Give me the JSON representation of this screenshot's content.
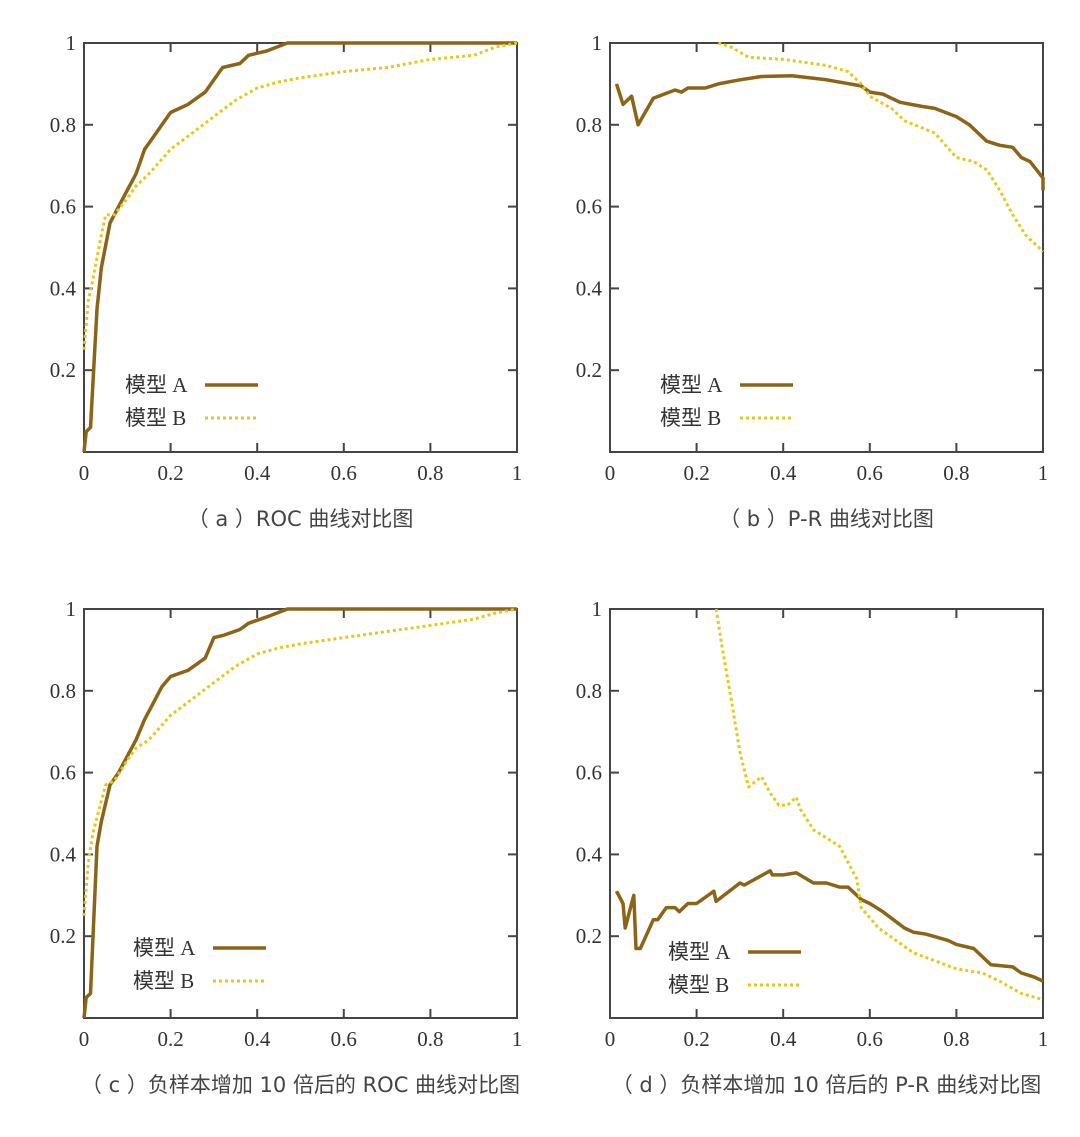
{
  "colors": {
    "model_a": "#8c6418",
    "model_b": "#e6c81a",
    "axis": "#444444"
  },
  "chart_data": [
    {
      "type": "line",
      "caption": "（ a ）ROC 曲线对比图",
      "xlim": [
        0,
        1
      ],
      "ylim": [
        0,
        1
      ],
      "x_ticks": [
        "0",
        "0.2",
        "0.4",
        "0.6",
        "0.8",
        "1"
      ],
      "y_ticks": [
        "0.2",
        "0.4",
        "0.6",
        "0.8",
        "1"
      ],
      "grid": false,
      "legend_position": "bottom-left",
      "series": [
        {
          "name": "模型 A",
          "style": "solid",
          "x": [
            0,
            0.005,
            0.015,
            0.03,
            0.04,
            0.06,
            0.08,
            0.1,
            0.12,
            0.14,
            0.16,
            0.18,
            0.2,
            0.24,
            0.28,
            0.3,
            0.32,
            0.36,
            0.38,
            0.42,
            0.47,
            0.55,
            1
          ],
          "y": [
            0,
            0.05,
            0.06,
            0.35,
            0.45,
            0.56,
            0.6,
            0.64,
            0.68,
            0.74,
            0.77,
            0.8,
            0.83,
            0.85,
            0.88,
            0.91,
            0.94,
            0.95,
            0.97,
            0.98,
            1,
            1,
            1
          ]
        },
        {
          "name": "模型 B",
          "style": "dotted",
          "x": [
            0,
            0.01,
            0.02,
            0.04,
            0.05,
            0.07,
            0.1,
            0.12,
            0.15,
            0.2,
            0.25,
            0.3,
            0.35,
            0.4,
            0.45,
            0.5,
            0.6,
            0.7,
            0.8,
            0.9,
            0.95,
            1
          ],
          "y": [
            0.25,
            0.37,
            0.42,
            0.53,
            0.58,
            0.58,
            0.62,
            0.65,
            0.68,
            0.74,
            0.78,
            0.82,
            0.86,
            0.89,
            0.905,
            0.915,
            0.93,
            0.94,
            0.96,
            0.97,
            0.99,
            1
          ]
        }
      ]
    },
    {
      "type": "line",
      "caption": "（ b ）P-R 曲线对比图",
      "xlim": [
        0,
        1
      ],
      "ylim": [
        0,
        1
      ],
      "x_ticks": [
        "0",
        "0.2",
        "0.4",
        "0.6",
        "0.8",
        "1"
      ],
      "y_ticks": [
        "0.2",
        "0.4",
        "0.6",
        "0.8",
        "1"
      ],
      "grid": false,
      "legend_position": "bottom-left",
      "series": [
        {
          "name": "模型 A",
          "style": "solid",
          "x": [
            0.015,
            0.03,
            0.05,
            0.065,
            0.1,
            0.15,
            0.165,
            0.18,
            0.22,
            0.25,
            0.3,
            0.35,
            0.42,
            0.5,
            0.58,
            0.6,
            0.63,
            0.67,
            0.72,
            0.75,
            0.8,
            0.83,
            0.87,
            0.9,
            0.93,
            0.95,
            0.97,
            1,
            1
          ],
          "y": [
            0.9,
            0.85,
            0.87,
            0.8,
            0.865,
            0.885,
            0.88,
            0.89,
            0.89,
            0.9,
            0.91,
            0.918,
            0.92,
            0.91,
            0.895,
            0.88,
            0.875,
            0.855,
            0.845,
            0.84,
            0.82,
            0.8,
            0.76,
            0.75,
            0.745,
            0.72,
            0.71,
            0.67,
            0.64
          ]
        },
        {
          "name": "模型 B",
          "style": "dotted",
          "x": [
            0.25,
            0.28,
            0.32,
            0.4,
            0.5,
            0.55,
            0.58,
            0.6,
            0.65,
            0.68,
            0.75,
            0.8,
            0.84,
            0.87,
            0.9,
            0.93,
            0.96,
            1
          ],
          "y": [
            1,
            0.99,
            0.965,
            0.96,
            0.945,
            0.93,
            0.9,
            0.87,
            0.84,
            0.81,
            0.78,
            0.72,
            0.71,
            0.69,
            0.64,
            0.58,
            0.53,
            0.49
          ]
        }
      ]
    },
    {
      "type": "line",
      "caption": "（ c ）负样本增加 10 倍后的 ROC 曲线对比图",
      "xlim": [
        0,
        1
      ],
      "ylim": [
        0,
        1
      ],
      "x_ticks": [
        "0",
        "0.2",
        "0.4",
        "0.6",
        "0.8",
        "1"
      ],
      "y_ticks": [
        "0.2",
        "0.4",
        "0.6",
        "0.8",
        "1"
      ],
      "grid": false,
      "legend_position": "bottom-left",
      "series": [
        {
          "name": "模型 A",
          "style": "solid",
          "x": [
            0,
            0.005,
            0.015,
            0.03,
            0.04,
            0.06,
            0.08,
            0.1,
            0.12,
            0.14,
            0.16,
            0.18,
            0.2,
            0.24,
            0.28,
            0.3,
            0.32,
            0.36,
            0.38,
            0.42,
            0.47,
            0.55,
            1
          ],
          "y": [
            0,
            0.05,
            0.06,
            0.42,
            0.48,
            0.57,
            0.6,
            0.64,
            0.68,
            0.73,
            0.77,
            0.81,
            0.835,
            0.85,
            0.88,
            0.93,
            0.935,
            0.95,
            0.965,
            0.98,
            1,
            1,
            1
          ]
        },
        {
          "name": "模型 B",
          "style": "dotted",
          "x": [
            0,
            0.01,
            0.02,
            0.04,
            0.05,
            0.07,
            0.1,
            0.12,
            0.15,
            0.2,
            0.25,
            0.3,
            0.35,
            0.4,
            0.45,
            0.5,
            0.6,
            0.7,
            0.8,
            0.9,
            0.95,
            1
          ],
          "y": [
            0.25,
            0.38,
            0.45,
            0.53,
            0.57,
            0.58,
            0.63,
            0.66,
            0.68,
            0.74,
            0.78,
            0.82,
            0.86,
            0.89,
            0.905,
            0.915,
            0.93,
            0.945,
            0.96,
            0.975,
            0.99,
            1
          ]
        }
      ]
    },
    {
      "type": "line",
      "caption": "（ d ）负样本增加 10 倍后的 P-R 曲线对比图",
      "xlim": [
        0,
        1
      ],
      "ylim": [
        0,
        1
      ],
      "x_ticks": [
        "0",
        "0.2",
        "0.4",
        "0.6",
        "0.8",
        "1"
      ],
      "y_ticks": [
        "0.2",
        "0.4",
        "0.6",
        "0.8",
        "1"
      ],
      "grid": false,
      "legend_position": "bottom-left",
      "series": [
        {
          "name": "模型 A",
          "style": "solid",
          "x": [
            0.015,
            0.03,
            0.035,
            0.05,
            0.055,
            0.06,
            0.07,
            0.1,
            0.11,
            0.13,
            0.15,
            0.16,
            0.18,
            0.2,
            0.24,
            0.245,
            0.3,
            0.31,
            0.37,
            0.375,
            0.4,
            0.43,
            0.47,
            0.5,
            0.53,
            0.55,
            0.58,
            0.6,
            0.63,
            0.68,
            0.7,
            0.73,
            0.78,
            0.8,
            0.84,
            0.88,
            0.93,
            0.95,
            0.98,
            1
          ],
          "y": [
            0.31,
            0.28,
            0.22,
            0.28,
            0.3,
            0.17,
            0.17,
            0.24,
            0.24,
            0.27,
            0.27,
            0.26,
            0.28,
            0.28,
            0.31,
            0.285,
            0.33,
            0.325,
            0.36,
            0.35,
            0.35,
            0.355,
            0.33,
            0.33,
            0.32,
            0.32,
            0.29,
            0.28,
            0.26,
            0.22,
            0.21,
            0.205,
            0.19,
            0.18,
            0.17,
            0.13,
            0.125,
            0.11,
            0.1,
            0.09
          ]
        },
        {
          "name": "模型 B",
          "style": "dotted",
          "x": [
            0.245,
            0.26,
            0.28,
            0.3,
            0.32,
            0.35,
            0.37,
            0.39,
            0.41,
            0.43,
            0.44,
            0.47,
            0.5,
            0.53,
            0.57,
            0.58,
            0.62,
            0.7,
            0.8,
            0.86,
            0.9,
            0.95,
            1
          ],
          "y": [
            1,
            0.9,
            0.78,
            0.65,
            0.565,
            0.59,
            0.55,
            0.52,
            0.52,
            0.54,
            0.51,
            0.46,
            0.44,
            0.42,
            0.34,
            0.27,
            0.22,
            0.16,
            0.12,
            0.11,
            0.09,
            0.06,
            0.045
          ]
        }
      ]
    }
  ]
}
